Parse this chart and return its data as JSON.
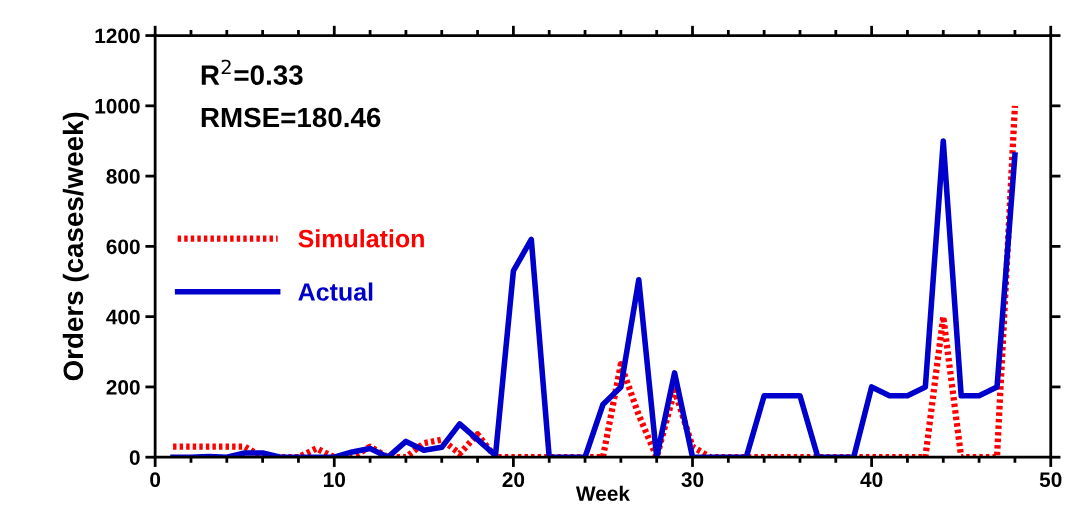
{
  "chart_data": {
    "type": "line",
    "xlabel": "Week",
    "ylabel": "Orders (cases/week)",
    "x": [
      1,
      2,
      3,
      4,
      5,
      6,
      7,
      8,
      9,
      10,
      11,
      12,
      13,
      14,
      15,
      16,
      17,
      18,
      19,
      20,
      21,
      22,
      23,
      24,
      25,
      26,
      27,
      28,
      29,
      30,
      31,
      32,
      33,
      34,
      35,
      36,
      37,
      38,
      39,
      40,
      41,
      42,
      43,
      44,
      45,
      46,
      47,
      48
    ],
    "series": [
      {
        "name": "Simulation",
        "color": "#ff0000",
        "line_style": "dotted",
        "values": [
          30,
          30,
          30,
          30,
          30,
          0,
          0,
          0,
          25,
          0,
          0,
          30,
          0,
          0,
          40,
          50,
          10,
          65,
          0,
          0,
          0,
          0,
          0,
          0,
          0,
          265,
          120,
          0,
          190,
          30,
          0,
          0,
          0,
          0,
          0,
          0,
          0,
          0,
          0,
          0,
          0,
          0,
          0,
          400,
          0,
          0,
          0,
          1000
        ]
      },
      {
        "name": "Actual",
        "color": "#0000cc",
        "line_style": "solid",
        "values": [
          0,
          0,
          2,
          0,
          12,
          12,
          0,
          0,
          0,
          0,
          15,
          25,
          0,
          45,
          20,
          28,
          95,
          50,
          5,
          530,
          620,
          0,
          0,
          0,
          150,
          200,
          505,
          0,
          240,
          0,
          0,
          0,
          0,
          175,
          175,
          175,
          0,
          0,
          0,
          200,
          175,
          175,
          200,
          900,
          175,
          175,
          200,
          860
        ]
      }
    ],
    "annotations": [
      "R$^{2}$=0.33",
      "RMSE=180.46"
    ],
    "xlim": [
      0,
      50
    ],
    "xticks": [
      0,
      10,
      20,
      30,
      40,
      50
    ],
    "ylim": [
      0,
      1200
    ],
    "yticks": [
      0,
      200,
      400,
      600,
      800,
      1000,
      1200
    ],
    "grid": false,
    "legend": "center left",
    "marker": "none"
  }
}
